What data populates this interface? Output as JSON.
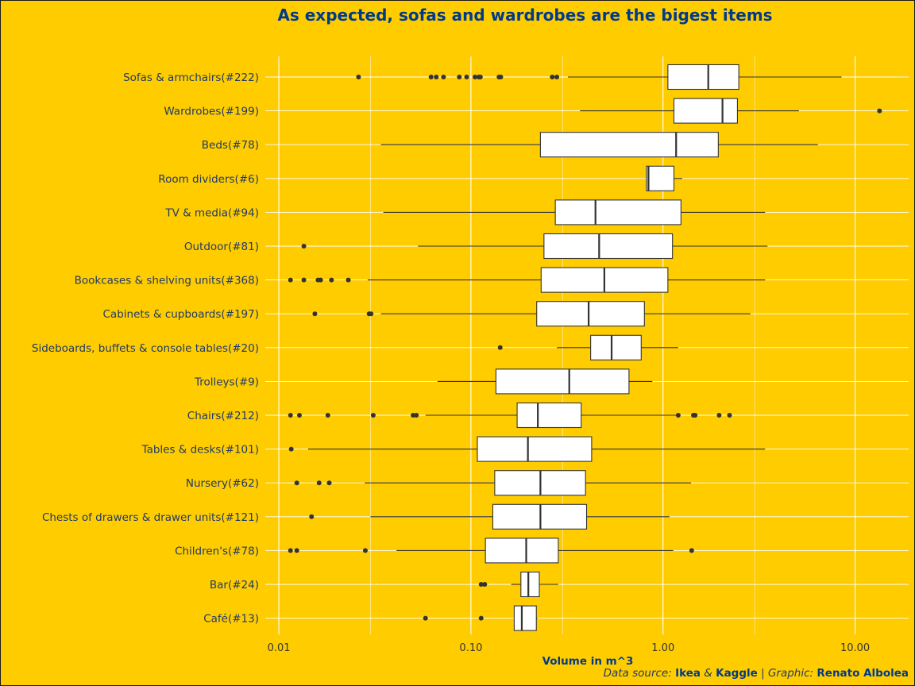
{
  "chart_data": {
    "type": "boxplot",
    "title": "As expected, sofas and wardrobes are the bigest items",
    "xlabel": "Volume in m^3",
    "x_scale": "log10",
    "xlim": [
      0.0085,
      19.0
    ],
    "x_ticks": [
      0.01,
      0.1,
      1.0,
      10.0
    ],
    "x_tick_labels": [
      "0.01",
      "0.10",
      "1.00",
      "10.00"
    ],
    "grid": true,
    "colors": {
      "background": "#FFCC00",
      "box_fill": "#FFFFFF",
      "box_line": "#333333",
      "grid": "#FFFFFF",
      "title": "#003A8C",
      "label": "#1F3A68"
    },
    "categories": [
      {
        "label": "Sofas & armchairs(#222)",
        "whisker_low": 0.32,
        "q1": 1.06,
        "median": 1.72,
        "q3": 2.48,
        "whisker_high": 8.5,
        "outliers": [
          0.026,
          0.062,
          0.066,
          0.072,
          0.087,
          0.095,
          0.105,
          0.11,
          0.112,
          0.14,
          0.143,
          0.265,
          0.28
        ]
      },
      {
        "label": "Wardrobes(#199)",
        "whisker_low": 0.37,
        "q1": 1.14,
        "median": 2.04,
        "q3": 2.44,
        "whisker_high": 5.1,
        "outliers": [
          13.4
        ]
      },
      {
        "label": "Beds(#78)",
        "whisker_low": 0.034,
        "q1": 0.23,
        "median": 1.17,
        "q3": 1.94,
        "whisker_high": 6.4,
        "outliers": []
      },
      {
        "label": "Room dividers(#6)",
        "whisker_low": 0.82,
        "q1": 0.82,
        "median": 0.84,
        "q3": 1.14,
        "whisker_high": 1.26,
        "outliers": []
      },
      {
        "label": "TV & media(#94)",
        "whisker_low": 0.035,
        "q1": 0.275,
        "median": 0.445,
        "q3": 1.24,
        "whisker_high": 3.4,
        "outliers": []
      },
      {
        "label": "Outdoor(#81)",
        "whisker_low": 0.053,
        "q1": 0.24,
        "median": 0.465,
        "q3": 1.12,
        "whisker_high": 3.5,
        "outliers": [
          0.0135
        ]
      },
      {
        "label": "Bookcases & shelving units(#368)",
        "whisker_low": 0.029,
        "q1": 0.232,
        "median": 0.495,
        "q3": 1.06,
        "whisker_high": 3.4,
        "outliers": [
          0.0115,
          0.0135,
          0.016,
          0.0165,
          0.0188,
          0.023
        ]
      },
      {
        "label": "Cabinets & cupboards(#197)",
        "whisker_low": 0.034,
        "q1": 0.22,
        "median": 0.41,
        "q3": 0.8,
        "whisker_high": 2.85,
        "outliers": [
          0.0154,
          0.0295,
          0.0302
        ]
      },
      {
        "label": "Sideboards, buffets & console tables(#20)",
        "whisker_low": 0.28,
        "q1": 0.42,
        "median": 0.54,
        "q3": 0.77,
        "whisker_high": 1.2,
        "outliers": [
          0.142
        ]
      },
      {
        "label": "Trolleys(#9)",
        "whisker_low": 0.067,
        "q1": 0.135,
        "median": 0.325,
        "q3": 0.665,
        "whisker_high": 0.88,
        "outliers": []
      },
      {
        "label": "Chairs(#212)",
        "whisker_low": 0.058,
        "q1": 0.174,
        "median": 0.223,
        "q3": 0.375,
        "whisker_high": 1.2,
        "outliers": [
          0.0115,
          0.0128,
          0.018,
          0.031,
          0.05,
          0.052,
          1.2,
          1.44,
          1.47,
          1.96,
          2.22
        ]
      },
      {
        "label": "Tables & desks(#101)",
        "whisker_low": 0.0142,
        "q1": 0.108,
        "median": 0.198,
        "q3": 0.425,
        "whisker_high": 3.4,
        "outliers": [
          0.0116
        ]
      },
      {
        "label": "Nursery(#62)",
        "whisker_low": 0.028,
        "q1": 0.133,
        "median": 0.23,
        "q3": 0.395,
        "whisker_high": 1.4,
        "outliers": [
          0.0124,
          0.0162,
          0.0183
        ]
      },
      {
        "label": "Chests of drawers & drawer units(#121)",
        "whisker_low": 0.03,
        "q1": 0.13,
        "median": 0.23,
        "q3": 0.4,
        "whisker_high": 1.08,
        "outliers": [
          0.0148
        ]
      },
      {
        "label": "Children's(#78)",
        "whisker_low": 0.041,
        "q1": 0.119,
        "median": 0.194,
        "q3": 0.285,
        "whisker_high": 1.13,
        "outliers": [
          0.0115,
          0.0124,
          0.0282,
          1.41
        ]
      },
      {
        "label": "Bar(#24)",
        "whisker_low": 0.162,
        "q1": 0.182,
        "median": 0.199,
        "q3": 0.227,
        "whisker_high": 0.285,
        "outliers": [
          0.113,
          0.118
        ]
      },
      {
        "label": "Café(#13)",
        "whisker_low": 0.168,
        "q1": 0.168,
        "median": 0.184,
        "q3": 0.219,
        "whisker_high": 0.222,
        "outliers": [
          0.058,
          0.113
        ]
      }
    ]
  },
  "caption": {
    "source_label": "Data source:",
    "source_a": "Ikea",
    "amp": "&",
    "source_b": "Kaggle",
    "sep": "|",
    "graphic_label": "Graphic:",
    "author": "Renato Albolea"
  }
}
